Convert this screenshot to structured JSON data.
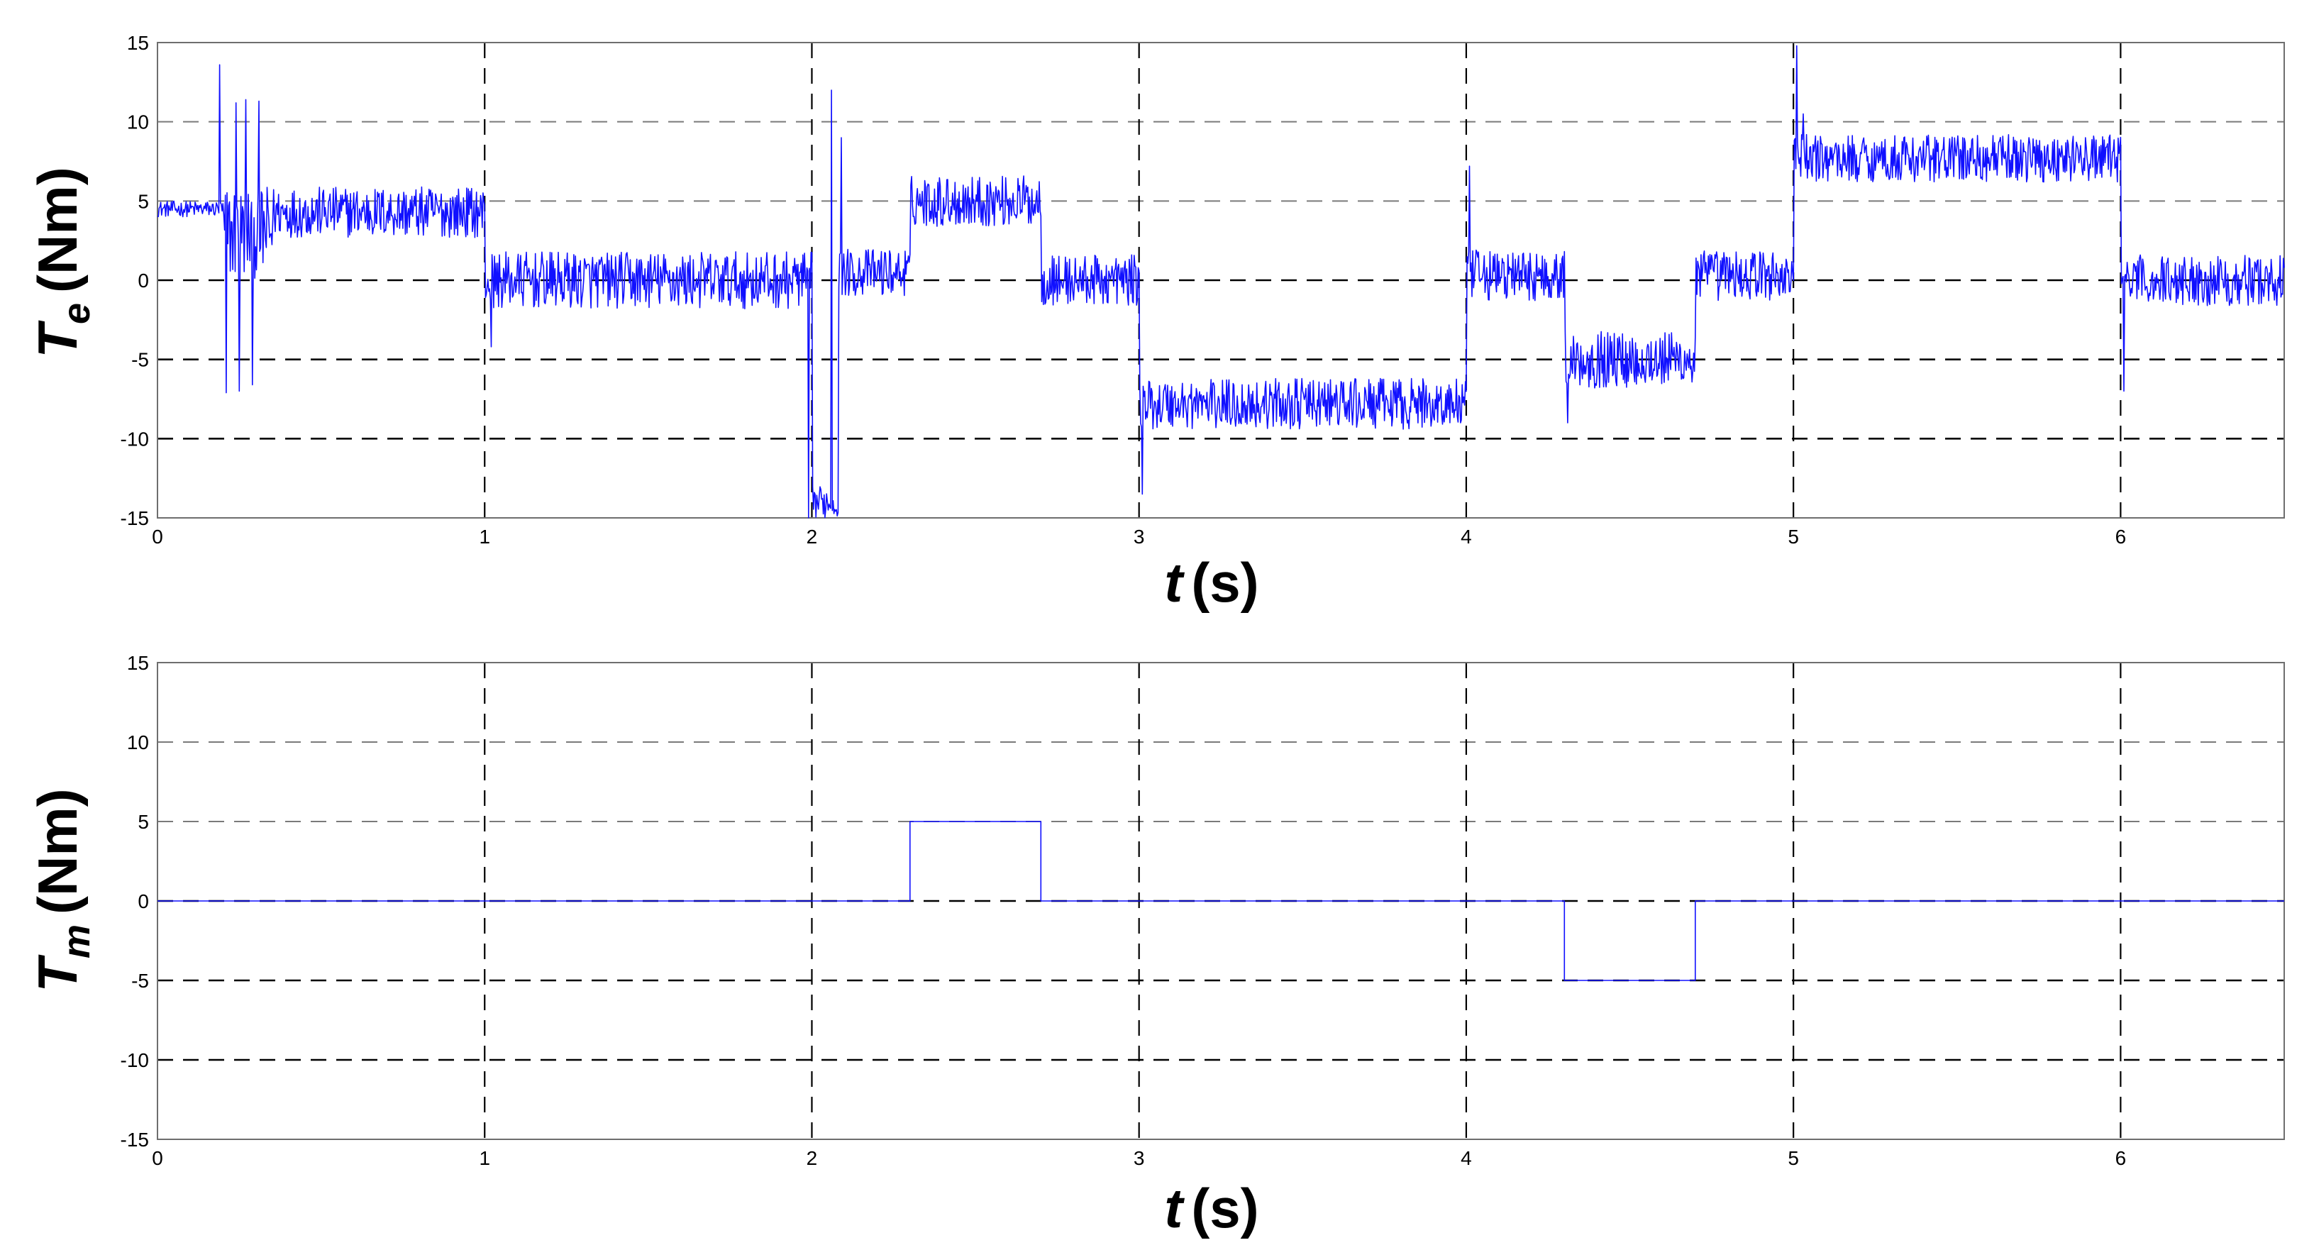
{
  "chart_data": [
    {
      "type": "line",
      "xlabel_var": "t",
      "xlabel_unit": "(s)",
      "ylabel_var": "T",
      "ylabel_sub": "e",
      "ylabel_unit": "(Nm)",
      "xlim": [
        0,
        6.5
      ],
      "ylim": [
        -15,
        15
      ],
      "xticks": [
        0,
        1,
        2,
        3,
        4,
        5,
        6
      ],
      "yticks": [
        -15,
        -10,
        -5,
        0,
        5,
        10,
        15
      ],
      "grid": true,
      "color": "#1010ff",
      "series": [
        {
          "segments": [
            {
              "x0": 0.0,
              "x1": 0.2,
              "mean": 4.5,
              "noise": 0.5
            },
            {
              "x0": 0.2,
              "x1": 0.35,
              "mean": 3.0,
              "noise": 3.0
            },
            {
              "x0": 0.35,
              "x1": 1.0,
              "mean": 4.3,
              "noise": 1.6
            },
            {
              "x0": 1.0,
              "x1": 2.0,
              "mean": 0.0,
              "noise": 1.8
            },
            {
              "x0": 2.0,
              "x1": 2.08,
              "mean": -14.0,
              "noise": 1.0
            },
            {
              "x0": 2.08,
              "x1": 2.3,
              "mean": 0.5,
              "noise": 1.5
            },
            {
              "x0": 2.3,
              "x1": 2.7,
              "mean": 5.0,
              "noise": 1.6
            },
            {
              "x0": 2.7,
              "x1": 3.0,
              "mean": 0.0,
              "noise": 1.6
            },
            {
              "x0": 3.0,
              "x1": 4.0,
              "mean": -7.8,
              "noise": 1.6
            },
            {
              "x0": 4.0,
              "x1": 4.3,
              "mean": 0.3,
              "noise": 1.6
            },
            {
              "x0": 4.3,
              "x1": 4.7,
              "mean": -5.0,
              "noise": 1.8
            },
            {
              "x0": 4.7,
              "x1": 5.0,
              "mean": 0.3,
              "noise": 1.6
            },
            {
              "x0": 5.0,
              "x1": 6.0,
              "mean": 7.7,
              "noise": 1.5
            },
            {
              "x0": 6.0,
              "x1": 6.5,
              "mean": 0.0,
              "noise": 1.6
            }
          ],
          "spikes": [
            {
              "x": 0.19,
              "y": 13.6
            },
            {
              "x": 0.21,
              "y": -7.1
            },
            {
              "x": 0.24,
              "y": 11.2
            },
            {
              "x": 0.25,
              "y": -7.0
            },
            {
              "x": 0.27,
              "y": 11.4
            },
            {
              "x": 0.29,
              "y": -6.6
            },
            {
              "x": 0.31,
              "y": 11.3
            },
            {
              "x": 1.02,
              "y": -4.2
            },
            {
              "x": 1.99,
              "y": -15
            },
            {
              "x": 2.06,
              "y": 12.0
            },
            {
              "x": 2.09,
              "y": 9.0
            },
            {
              "x": 3.01,
              "y": -13.5
            },
            {
              "x": 4.01,
              "y": 7.2
            },
            {
              "x": 4.31,
              "y": -9.0
            },
            {
              "x": 5.01,
              "y": 14.8
            },
            {
              "x": 5.03,
              "y": 10.5
            },
            {
              "x": 6.01,
              "y": -7.0
            }
          ]
        }
      ]
    },
    {
      "type": "line",
      "xlabel_var": "t",
      "xlabel_unit": "(s)",
      "ylabel_var": "T",
      "ylabel_sub": "m",
      "ylabel_unit": "(Nm)",
      "xlim": [
        0,
        6.5
      ],
      "ylim": [
        -15,
        15
      ],
      "xticks": [
        0,
        1,
        2,
        3,
        4,
        5,
        6
      ],
      "yticks": [
        -15,
        -10,
        -5,
        0,
        5,
        10,
        15
      ],
      "grid": true,
      "color": "#1010ff",
      "series": [
        {
          "x": [
            0,
            2.3,
            2.3,
            2.7,
            2.7,
            4.3,
            4.3,
            4.7,
            4.7,
            6.5
          ],
          "y": [
            0,
            0,
            5,
            5,
            0,
            0,
            -5,
            -5,
            0,
            0
          ]
        }
      ]
    }
  ]
}
